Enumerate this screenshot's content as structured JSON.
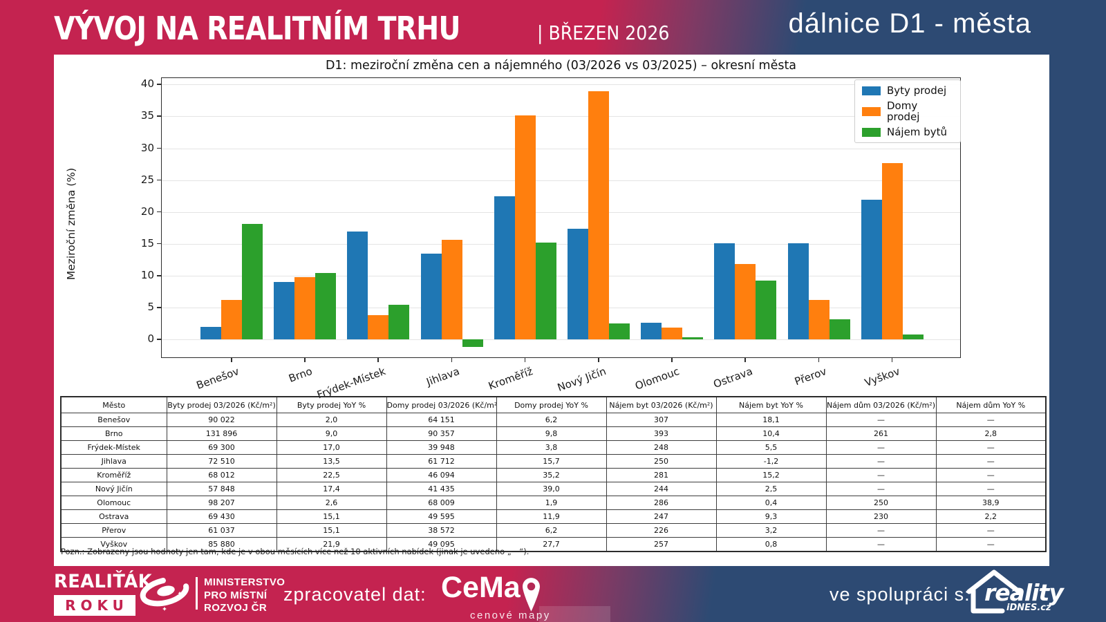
{
  "header": {
    "title": "VÝVOJ NA REALITNÍM TRHU",
    "subtitle": "| BŘEZEN 2026",
    "right_title": "dálnice D1 - města"
  },
  "chart_data": {
    "type": "bar",
    "title": "D1: meziroční změna cen a nájemného (03/2026 vs 03/2025) – okresní města",
    "ylabel": "Meziroční změna (%)",
    "ylim": [
      -3,
      41
    ],
    "yticks": [
      0,
      5,
      10,
      15,
      20,
      25,
      30,
      35,
      40
    ],
    "grid": true,
    "legend_position": "upper right",
    "categories": [
      "Benešov",
      "Brno",
      "Frýdek-Místek",
      "Jihlava",
      "Kroměříž",
      "Nový Jičín",
      "Olomouc",
      "Ostrava",
      "Přerov",
      "Vyškov"
    ],
    "series": [
      {
        "name": "Byty prodej",
        "color": "#1f77b4",
        "values": [
          2.0,
          9.0,
          17.0,
          13.5,
          22.5,
          17.4,
          2.6,
          15.1,
          15.1,
          21.9
        ]
      },
      {
        "name": "Domy prodej",
        "color": "#ff7f0e",
        "values": [
          6.2,
          9.8,
          3.8,
          15.7,
          35.2,
          39.0,
          1.9,
          11.9,
          6.2,
          27.7
        ]
      },
      {
        "name": "Nájem bytů",
        "color": "#2ca02c",
        "values": [
          18.1,
          10.4,
          5.5,
          -1.2,
          15.2,
          2.5,
          0.4,
          9.3,
          3.2,
          0.8
        ]
      }
    ]
  },
  "table": {
    "columns": [
      "Město",
      "Byty prodej 03/2026 (Kč/m²)",
      "Byty prodej YoY %",
      "Domy prodej 03/2026 (Kč/m²)",
      "Domy prodej YoY %",
      "Nájem byt 03/2026 (Kč/m²)",
      "Nájem byt YoY %",
      "Nájem dům 03/2026 (Kč/m²)",
      "Nájem dům YoY %"
    ],
    "rows": [
      [
        "Benešov",
        "90 022",
        "2,0",
        "64 151",
        "6,2",
        "307",
        "18,1",
        "—",
        "—"
      ],
      [
        "Brno",
        "131 896",
        "9,0",
        "90 357",
        "9,8",
        "393",
        "10,4",
        "261",
        "2,8"
      ],
      [
        "Frýdek-Místek",
        "69 300",
        "17,0",
        "39 948",
        "3,8",
        "248",
        "5,5",
        "—",
        "—"
      ],
      [
        "Jihlava",
        "72 510",
        "13,5",
        "61 712",
        "15,7",
        "250",
        "-1,2",
        "—",
        "—"
      ],
      [
        "Kroměříž",
        "68 012",
        "22,5",
        "46 094",
        "35,2",
        "281",
        "15,2",
        "—",
        "—"
      ],
      [
        "Nový Jičín",
        "57 848",
        "17,4",
        "41 435",
        "39,0",
        "244",
        "2,5",
        "—",
        "—"
      ],
      [
        "Olomouc",
        "98 207",
        "2,6",
        "68 009",
        "1,9",
        "286",
        "0,4",
        "250",
        "38,9"
      ],
      [
        "Ostrava",
        "69 430",
        "15,1",
        "49 595",
        "11,9",
        "247",
        "9,3",
        "230",
        "2,2"
      ],
      [
        "Přerov",
        "61 037",
        "15,1",
        "38 572",
        "6,2",
        "226",
        "3,2",
        "—",
        "—"
      ],
      [
        "Vyškov",
        "85 880",
        "21,9",
        "49 095",
        "27,7",
        "257",
        "0,8",
        "—",
        "—"
      ]
    ],
    "footnote": "Pozn.: Zobrazeny jsou hodnoty jen tam, kde je v obou měsících více než 10 aktivních nabídek (jinak je uvedeno „—“)."
  },
  "footer": {
    "realitak_line1": "REALIŤÁK",
    "realitak_line2": "ROKU",
    "ministry": [
      "MINISTERSTVO",
      "PRO MÍSTNÍ",
      "ROZVOJ ČR"
    ],
    "data_label": "zpracovatel dat:",
    "cemap_name": "CeMa",
    "cemap_sub": "cenové mapy",
    "partner_label": "ve spolupráci s:",
    "reality_name": "reality",
    "reality_sub": "iDNES.cz"
  },
  "colors": {
    "brand_crimson": "#c42350",
    "brand_dark_blue": "#2d4a73",
    "bar_blue": "#1f77b4",
    "bar_orange": "#ff7f0e",
    "bar_green": "#2ca02c"
  }
}
